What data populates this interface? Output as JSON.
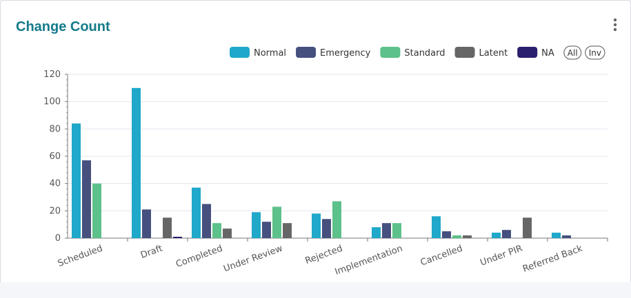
{
  "chart_data": {
    "type": "bar",
    "title": "Change Count",
    "categories": [
      "Scheduled",
      "Draft",
      "Completed",
      "Under Review",
      "Rejected",
      "Implementation",
      "Cancelled",
      "Under PIR",
      "Referred Back"
    ],
    "series": [
      {
        "name": "Normal",
        "color": "#1fa8c9",
        "values": [
          84,
          110,
          37,
          19,
          18,
          8,
          16,
          4,
          4
        ]
      },
      {
        "name": "Emergency",
        "color": "#45507f",
        "values": [
          57,
          21,
          25,
          12,
          14,
          11,
          5,
          6,
          2
        ]
      },
      {
        "name": "Standard",
        "color": "#5cc18a",
        "values": [
          40,
          0,
          11,
          23,
          27,
          11,
          2,
          0,
          0
        ]
      },
      {
        "name": "Latent",
        "color": "#666666",
        "values": [
          0,
          15,
          7,
          11,
          0,
          0,
          2,
          15,
          0
        ]
      },
      {
        "name": "NA",
        "color": "#2a1f6e",
        "values": [
          0,
          1,
          0,
          0,
          0,
          0,
          0,
          0,
          0
        ]
      }
    ],
    "legend_buttons": [
      "All",
      "Inv"
    ],
    "ylim": [
      0,
      120
    ],
    "yticks": [
      0,
      20,
      40,
      60,
      80,
      100,
      120
    ],
    "grid": true
  }
}
